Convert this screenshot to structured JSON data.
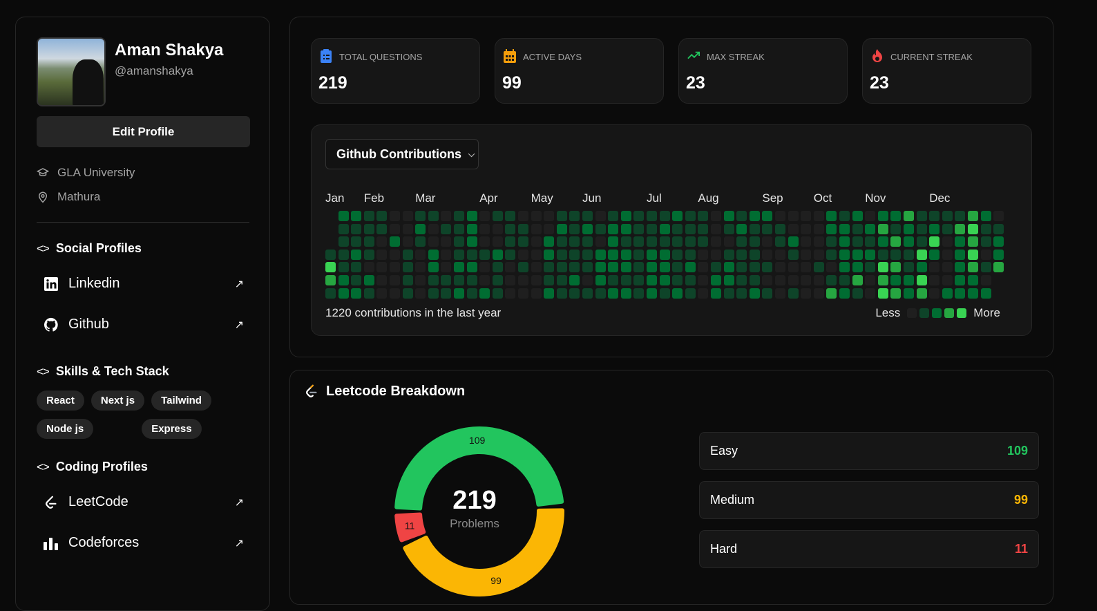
{
  "profile": {
    "name": "Aman Shakya",
    "handle": "@amanshakya",
    "edit_label": "Edit Profile",
    "university": "GLA University",
    "location": "Mathura"
  },
  "social": {
    "title": "Social Profiles",
    "items": [
      {
        "label": "Linkedin",
        "icon": "linkedin-icon"
      },
      {
        "label": "Github",
        "icon": "github-icon"
      }
    ]
  },
  "skills": {
    "title": "Skills & Tech Stack",
    "items": [
      "React",
      "Next js",
      "Tailwind",
      "Node js",
      "Express"
    ]
  },
  "coding": {
    "title": "Coding Profiles",
    "items": [
      {
        "label": "LeetCode",
        "icon": "leetcode-icon"
      },
      {
        "label": "Codeforces",
        "icon": "bar-chart-icon"
      }
    ]
  },
  "stats": [
    {
      "label": "TOTAL QUESTIONS",
      "value": "219",
      "icon": "clipboard-icon",
      "color": "#3b82f6"
    },
    {
      "label": "ACTIVE DAYS",
      "value": "99",
      "icon": "calendar-icon",
      "color": "#f59e0b"
    },
    {
      "label": "MAX STREAK",
      "value": "23",
      "icon": "trending-up-icon",
      "color": "#22c55e"
    },
    {
      "label": "CURRENT STREAK",
      "value": "23",
      "icon": "flame-icon",
      "color": "#ef4444"
    }
  ],
  "contributions": {
    "dropdown": "Github Contributions",
    "total_text": "1220 contributions in the last year",
    "less": "Less",
    "more": "More",
    "level_colors": [
      "#1f1f1f",
      "#0e4429",
      "#006d32",
      "#26a641",
      "#39d353"
    ],
    "months": [
      {
        "label": "Jan",
        "week": 0
      },
      {
        "label": "Feb",
        "week": 3
      },
      {
        "label": "Mar",
        "week": 7
      },
      {
        "label": "Apr",
        "week": 12
      },
      {
        "label": "May",
        "week": 16
      },
      {
        "label": "Jun",
        "week": 20
      },
      {
        "label": "Jul",
        "week": 25
      },
      {
        "label": "Aug",
        "week": 29
      },
      {
        "label": "Sep",
        "week": 34
      },
      {
        "label": "Oct",
        "week": 38
      },
      {
        "label": "Nov",
        "week": 42
      },
      {
        "label": "Dec",
        "week": 47
      }
    ],
    "weeks": [
      "---1431",
      "2111122",
      "2112112",
      "1111021",
      "1100000",
      "0020000",
      "0001111",
      "1210000",
      "1002211",
      "0100011",
      "1111212",
      "2221211",
      "0001002",
      "1002111",
      "1111000",
      "0110100",
      "0000000",
      "0022112",
      "1211111",
      "1111121",
      "1211101",
      "0102221",
      "1222212",
      "2212212",
      "1111111",
      "1112222",
      "1212221",
      "2111112",
      "1111211",
      "1110000",
      "0000122",
      "2101221",
      "1211111",
      "2111112",
      "2100101",
      "0110000",
      "0021001",
      "0000000",
      "0000100",
      "2211013",
      "1222212",
      "2112231",
      "0212100",
      "2321434",
      "2131323",
      "3221122",
      "1114243",
      "1242000",
      "1100002",
      "1322222",
      "3434322",
      "2110102",
      "01223--"
    ]
  },
  "leetcode": {
    "title": "Leetcode Breakdown",
    "total": "219",
    "total_label": "Problems",
    "chart_data": {
      "type": "pie",
      "categories": [
        "Easy",
        "Medium",
        "Hard"
      ],
      "values": [
        109,
        99,
        11
      ],
      "colors": [
        "#22c55e",
        "#fbb604",
        "#ef4444"
      ]
    },
    "rows": [
      {
        "label": "Easy",
        "value": "109",
        "color": "#22c55e"
      },
      {
        "label": "Medium",
        "value": "99",
        "color": "#fbb604"
      },
      {
        "label": "Hard",
        "value": "11",
        "color": "#ef4444"
      }
    ]
  }
}
